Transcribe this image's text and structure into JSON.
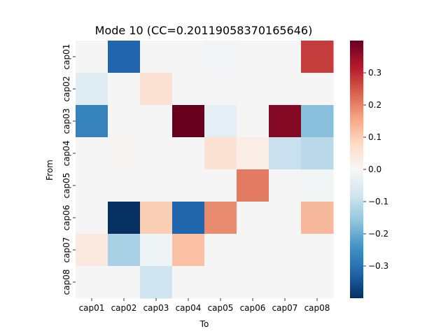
{
  "chart_data": {
    "type": "heatmap",
    "title": "Mode 10 (CC=0.20119058370165646)",
    "xlabel": "To",
    "ylabel": "From",
    "x_categories": [
      "cap01",
      "cap02",
      "cap03",
      "cap04",
      "cap05",
      "cap06",
      "cap07",
      "cap08"
    ],
    "y_categories": [
      "cap01",
      "cap02",
      "cap03",
      "cap04",
      "cap05",
      "cap06",
      "cap07",
      "cap08"
    ],
    "values": [
      [
        0,
        -0.32,
        0,
        0,
        -0.01,
        0,
        0,
        0.28
      ],
      [
        -0.05,
        0,
        0.06,
        0,
        0,
        0,
        0,
        0
      ],
      [
        -0.27,
        0,
        0,
        0.4,
        -0.04,
        0,
        0.37,
        -0.17
      ],
      [
        0,
        0.01,
        0,
        0,
        0.06,
        0.03,
        -0.09,
        -0.11
      ],
      [
        0,
        0,
        0,
        0,
        0,
        0.21,
        0,
        -0.01
      ],
      [
        0,
        -0.4,
        0.1,
        -0.32,
        0.19,
        0,
        0,
        0.13
      ],
      [
        0.04,
        -0.13,
        -0.02,
        0.12,
        0,
        0,
        0,
        0
      ],
      [
        0,
        0,
        -0.08,
        0,
        0,
        0,
        0,
        0
      ]
    ],
    "color_range": [
      -0.4,
      0.4
    ],
    "colormap": "RdBu_r",
    "colorbar_ticks": [
      0.3,
      0.2,
      0.1,
      0.0,
      -0.1,
      -0.2,
      -0.3
    ],
    "colorbar_tick_labels": [
      "0.3",
      "0.2",
      "0.1",
      "0.0",
      "−0.1",
      "−0.2",
      "−0.3"
    ],
    "grid": false,
    "colors": {
      "neutral": "#f5f5f5",
      "stops": [
        "#053061",
        "#2166ac",
        "#4393c3",
        "#92c5de",
        "#d1e5f0",
        "#f7f7f7",
        "#fddbc7",
        "#f4a582",
        "#d6604d",
        "#b2182b",
        "#67001f"
      ]
    }
  }
}
